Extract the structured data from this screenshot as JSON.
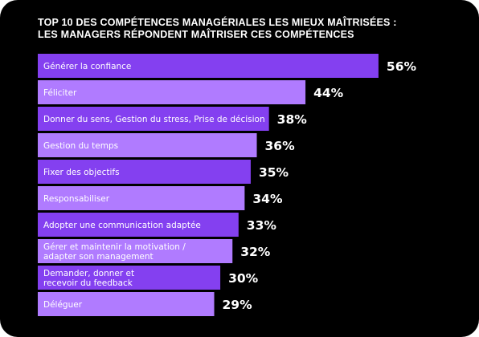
{
  "chart_data": {
    "type": "bar",
    "orientation": "horizontal",
    "title_lines": [
      "TOP 10 DES COMPÉTENCES MANAGÉRIALES LES MIEUX MAÎTRISÉES :",
      "LES MANAGERS RÉPONDENT MAÎTRISER CES COMPÉTENCES"
    ],
    "categories": [
      [
        "Générer la confiance"
      ],
      [
        "Féliciter"
      ],
      [
        "Donner du sens, Gestion du stress, Prise de décision"
      ],
      [
        "Gestion du temps"
      ],
      [
        "Fixer des objectifs"
      ],
      [
        "Responsabiliser"
      ],
      [
        "Adopter une communication adaptée"
      ],
      [
        "Gérer et maintenir la motivation /",
        "adapter son management"
      ],
      [
        "Demander, donner et",
        "recevoir du feedback"
      ],
      [
        "Déléguer"
      ]
    ],
    "values": [
      56,
      44,
      38,
      36,
      35,
      34,
      33,
      32,
      30,
      29
    ],
    "value_labels": [
      "56%",
      "44%",
      "38%",
      "36%",
      "35%",
      "34%",
      "33%",
      "32%",
      "30%",
      "29%"
    ],
    "unit": "%",
    "bar_colors": [
      "#8440f0",
      "#b07bff"
    ],
    "background_color": "#000000",
    "text_color": "#ffffff",
    "legend": "none",
    "grid": false
  }
}
